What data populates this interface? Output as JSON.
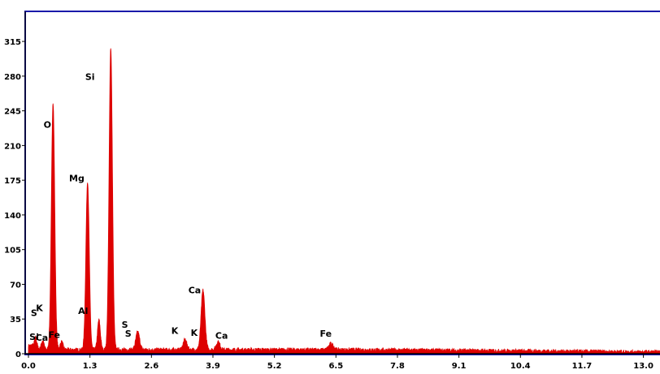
{
  "chart_data": {
    "type": "area",
    "title": "",
    "xlabel": "",
    "ylabel": "",
    "xlim": [
      0.0,
      13.0
    ],
    "ylim": [
      0,
      330
    ],
    "x_ticks": [
      "0.0",
      "1.3",
      "2.6",
      "3.9",
      "5.2",
      "6.5",
      "7.8",
      "9.1",
      "10.4",
      "11.7",
      "13.0"
    ],
    "y_ticks": [
      "315",
      "280",
      "245",
      "210",
      "175",
      "140",
      "105",
      "70",
      "35",
      "0"
    ],
    "grid": false,
    "colors": {
      "spectrum": "#dd0000",
      "frame": "#1a1aaa",
      "axis": "#000000"
    },
    "peaks": [
      {
        "x": 0.15,
        "y": 12,
        "width": 0.03
      },
      {
        "x": 0.3,
        "y": 9,
        "width": 0.03
      },
      {
        "x": 0.52,
        "y": 250,
        "width": 0.035
      },
      {
        "x": 0.7,
        "y": 8,
        "width": 0.03
      },
      {
        "x": 1.25,
        "y": 170,
        "width": 0.035
      },
      {
        "x": 1.49,
        "y": 30,
        "width": 0.03
      },
      {
        "x": 1.74,
        "y": 305,
        "width": 0.035
      },
      {
        "x": 2.31,
        "y": 18,
        "width": 0.04
      },
      {
        "x": 3.31,
        "y": 10,
        "width": 0.04
      },
      {
        "x": 3.69,
        "y": 60,
        "width": 0.04
      },
      {
        "x": 4.01,
        "y": 8,
        "width": 0.04
      },
      {
        "x": 6.4,
        "y": 6,
        "width": 0.05
      }
    ],
    "baseline": 4,
    "annotations": [
      {
        "text": "Si",
        "x": 0.02,
        "y": 14
      },
      {
        "text": "S",
        "x": 0.05,
        "y": 38
      },
      {
        "text": "K",
        "x": 0.16,
        "y": 43
      },
      {
        "text": "Ca",
        "x": 0.15,
        "y": 13
      },
      {
        "text": "Fe",
        "x": 0.42,
        "y": 16
      },
      {
        "text": "O",
        "x": 0.32,
        "y": 228
      },
      {
        "text": "Mg",
        "x": 0.86,
        "y": 174
      },
      {
        "text": "Al",
        "x": 1.05,
        "y": 40
      },
      {
        "text": "Si",
        "x": 1.2,
        "y": 276
      },
      {
        "text": "S",
        "x": 1.97,
        "y": 26
      },
      {
        "text": "S",
        "x": 2.04,
        "y": 17
      },
      {
        "text": "K",
        "x": 3.02,
        "y": 20
      },
      {
        "text": "K",
        "x": 3.43,
        "y": 18
      },
      {
        "text": "Ca",
        "x": 3.38,
        "y": 61
      },
      {
        "text": "Ca",
        "x": 3.95,
        "y": 15
      },
      {
        "text": "Fe",
        "x": 6.16,
        "y": 17
      }
    ]
  }
}
